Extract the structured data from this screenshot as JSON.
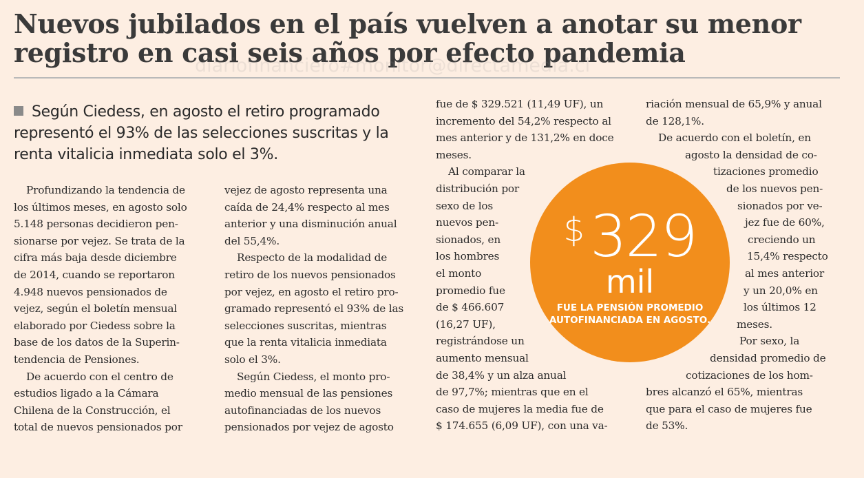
{
  "headline": {
    "line1": "Nuevos jubilados en el país vuelven a anotar su menor",
    "line2": "registro en casi seis años por efecto pandemia"
  },
  "watermark": "diariofinanciero#monitor@directamedia.cl",
  "lead": {
    "lines": [
      "Según Ciedess, en agosto el retiro programado",
      "representó el 93% de las selecciones suscritas y la",
      "renta vitalicia inmediata solo el 3%."
    ]
  },
  "columns": {
    "col1": [
      "Profundizando la tendencia de",
      "los últimos meses, en agosto solo",
      "5.148 personas decidieron pen-",
      "sionarse por vejez. Se trata de la",
      "cifra más baja desde diciembre",
      "de 2014, cuando se reportaron",
      "4.948 nuevos pensionados de",
      "vejez, según el boletín mensual",
      "elaborado por Ciedess sobre la",
      "base de los datos de la Superin-",
      "tendencia de Pensiones.",
      "De acuerdo con el centro de",
      "estudios ligado a la Cámara",
      "Chilena de la Construcción, el",
      "total de nuevos pensionados por"
    ],
    "col2": [
      "vejez de agosto representa una",
      "caída de 24,4% respecto al mes",
      "anterior y una disminución anual",
      "del 55,4%.",
      "Respecto de la modalidad de",
      "retiro de los nuevos pensionados",
      "por vejez, en agosto el retiro pro-",
      "gramado representó el 93% de las",
      "selecciones suscritas, mientras",
      "que la renta vitalicia inmediata",
      "solo el 3%.",
      "Según Ciedess, el monto pro-",
      "medio mensual de las pensiones",
      "autofinanciadas de los nuevos",
      "pensionados por vejez de agosto"
    ],
    "col3": [
      "fue de $ 329.521 (11,49 UF), un",
      "incremento del 54,2% respecto al",
      "mes anterior y de 131,2% en doce",
      "meses.",
      "Al comparar la",
      "distribución por",
      "sexo de los",
      "nuevos pen-",
      "sionados, en",
      "los hombres",
      "el monto",
      "promedio fue",
      "de $ 466.607",
      "(16,27 UF),",
      "registrándose un",
      "aumento mensual",
      "de 38,4% y un alza anual",
      "de 97,7%; mientras que en el",
      "caso de mujeres la media fue de",
      "$ 174.655 (6,09 UF), con una va-"
    ],
    "col4": [
      "riación mensual de 65,9% y anual",
      "de 128,1%.",
      "De acuerdo con el boletín, en",
      "agosto la densidad de co-",
      "tizaciones promedio",
      "de los nuevos pen-",
      "sionados por ve-",
      "jez fue de 60%,",
      "creciendo un",
      "15,4% respecto",
      "al mes anterior",
      "y un 20,0% en",
      "los últimos 12",
      "meses.",
      "Por sexo, la",
      "densidad promedio de",
      "cotizaciones de los hom-",
      "bres alcanzó el 65%, mientras",
      "que para el caso de mujeres fue",
      "de 53%."
    ]
  },
  "callout": {
    "currency": "$",
    "number": "329",
    "unit": "mil",
    "caption_line1": "FUE LA PENSIÓN PROMEDIO",
    "caption_line2": "AUTOFINANCIADA EN AGOSTO.",
    "color": "#f28e1c"
  },
  "colors": {
    "background": "#fdeee2",
    "headline": "#3a3a3a",
    "rule": "#b9b9b9"
  }
}
